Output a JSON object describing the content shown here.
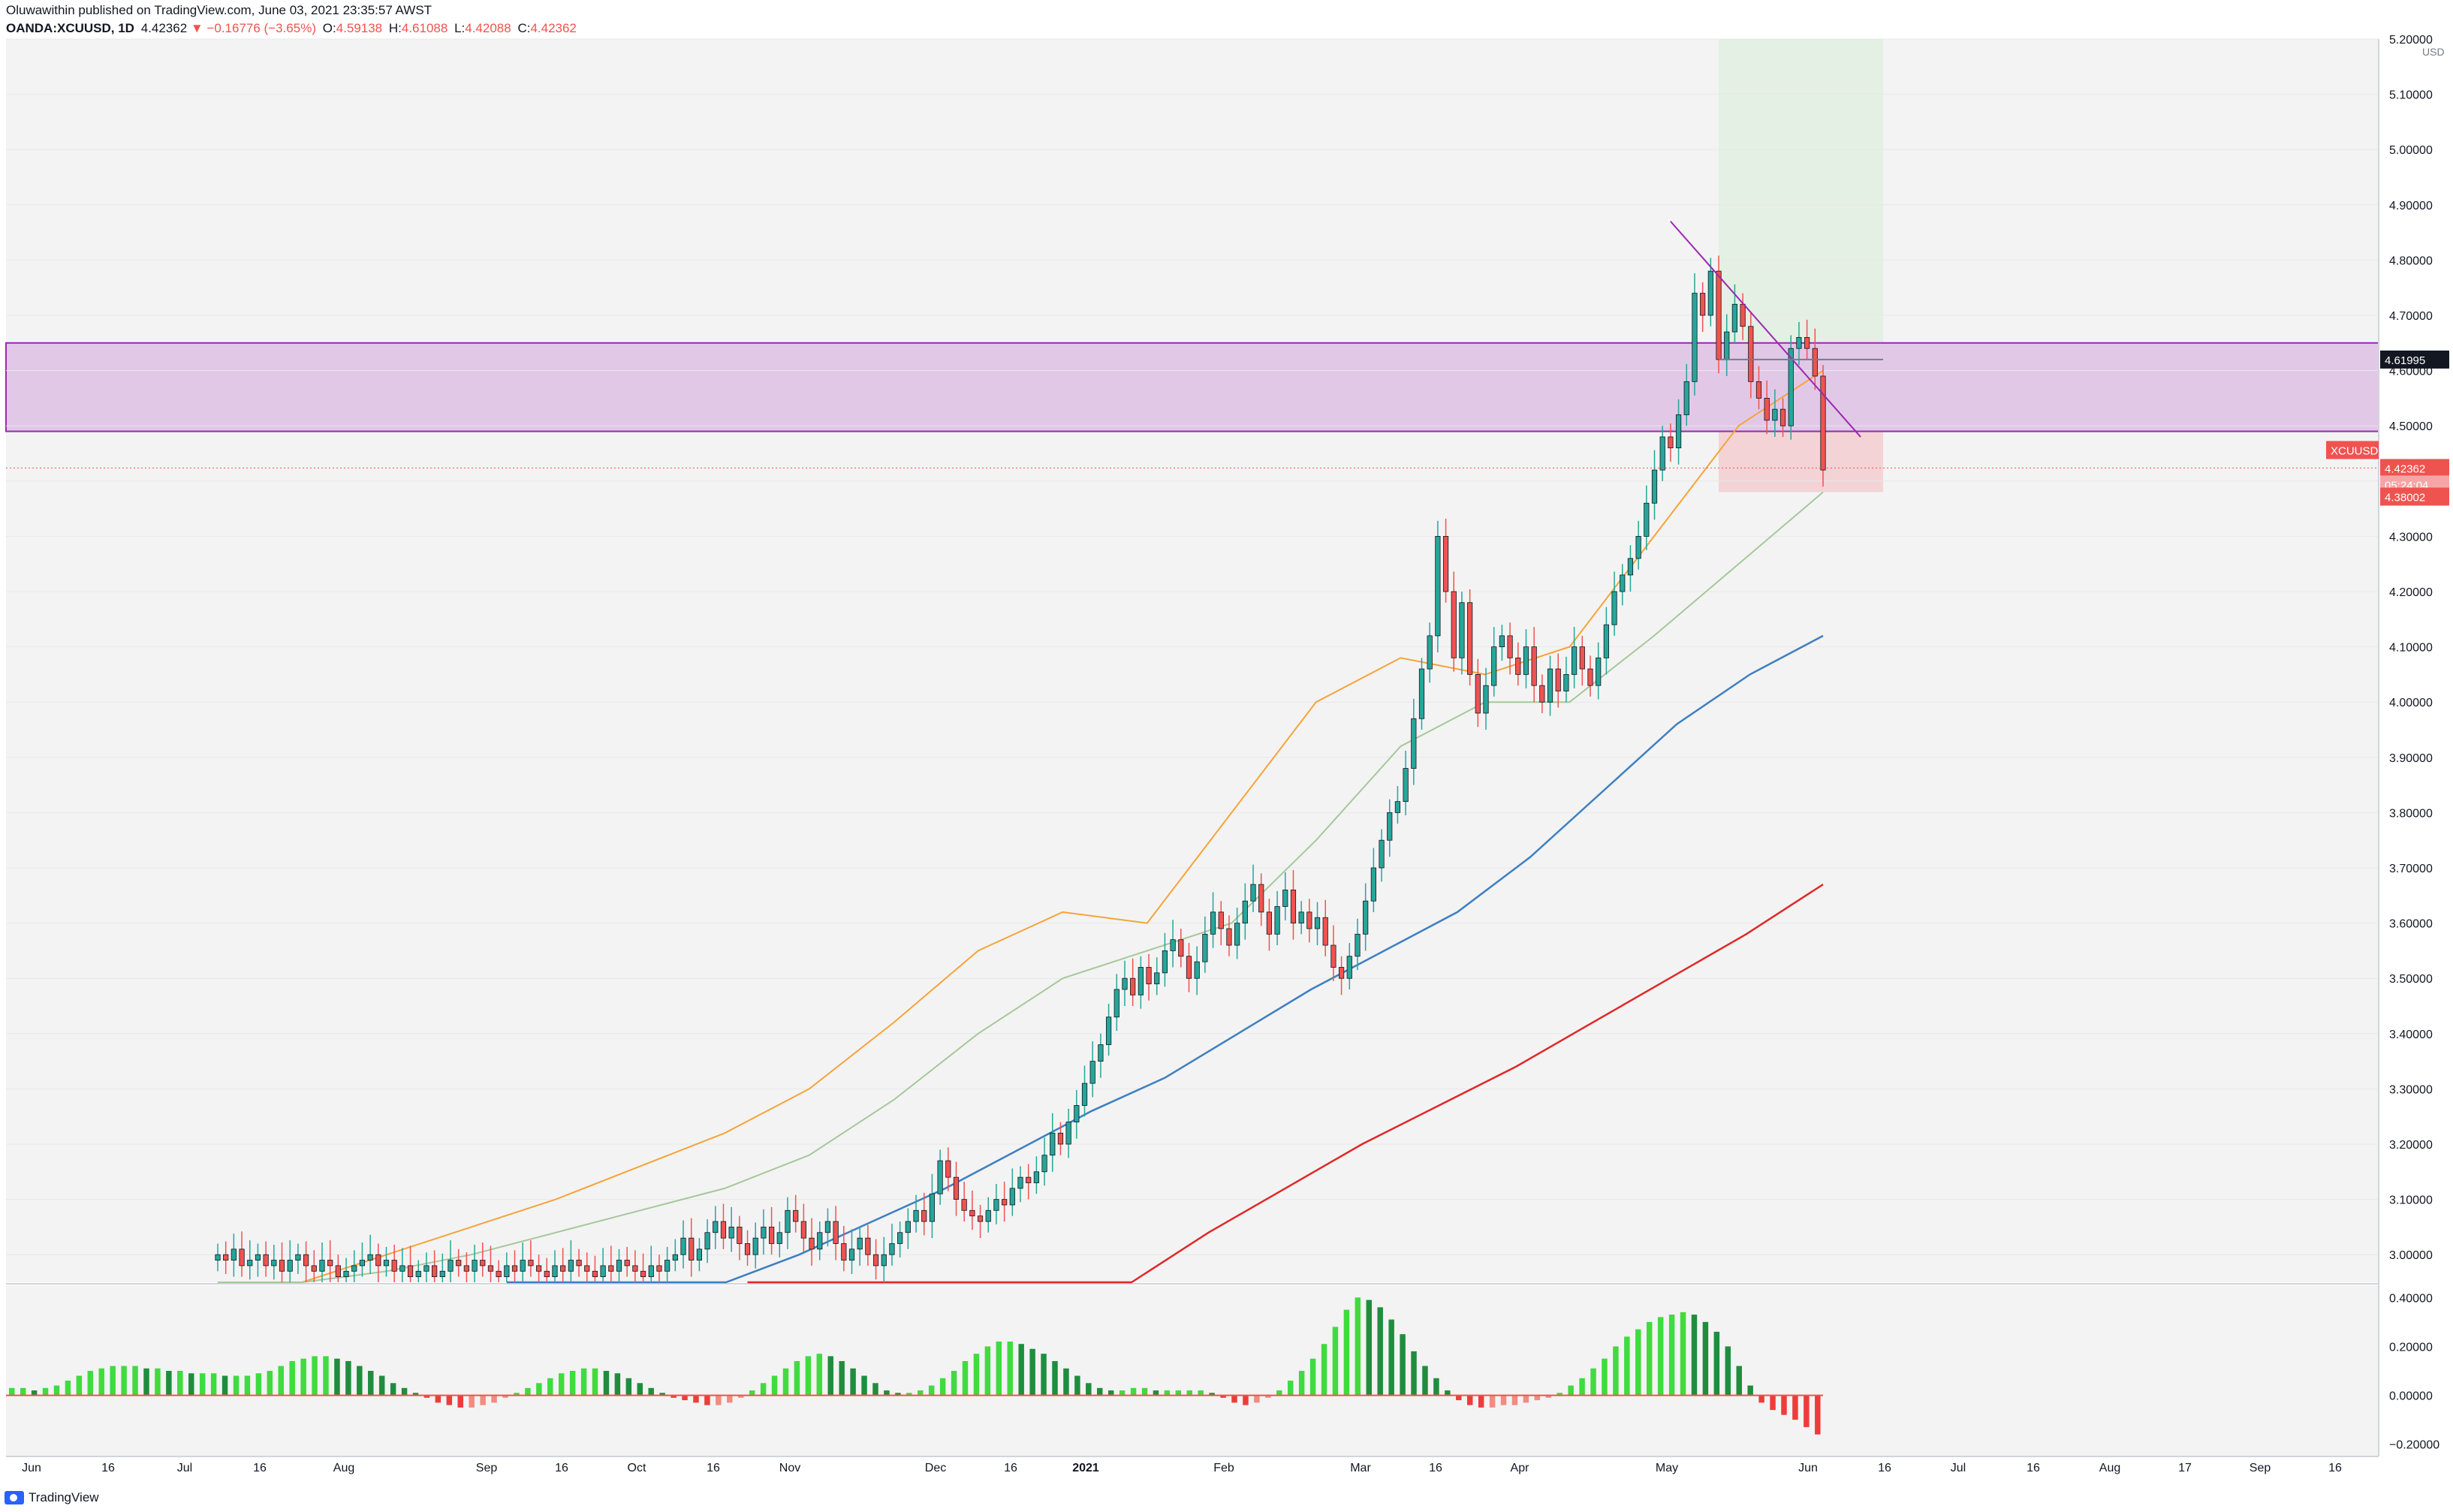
{
  "header": {
    "author": "Oluwawithin",
    "published_text": "published on TradingView.com, June 03, 2021 23:35:57 AWST",
    "symbol": "OANDA:XCUUSD, 1D",
    "last": "4.42362",
    "change": "▼ −0.16776 (−3.65%)",
    "o_label": "O:",
    "o": "4.59138",
    "h_label": "H:",
    "h": "4.61088",
    "l_label": "L:",
    "l": "4.42088",
    "c_label": "C:",
    "c": "4.42362"
  },
  "footer": {
    "brand": "TradingView"
  },
  "colors": {
    "up": "#26a69a",
    "down": "#ef5350",
    "zone": "#e1c8e7",
    "zone_border": "#9c27b0",
    "target": "#e3f0e3",
    "stop": "#f3d3d6",
    "ma20": "#f6a339",
    "ma50": "#a5c89a",
    "ma100": "#3e7fc1",
    "ma200": "#e02828",
    "hist_up": "#3fdb3f",
    "hist_down": "#ef3b3b"
  },
  "chart_data": {
    "type": "candlestick",
    "title": "",
    "currency": "USD",
    "ylim": [
      2.95,
      5.2
    ],
    "y_ticks": [
      "5.20000",
      "5.10000",
      "5.00000",
      "4.90000",
      "4.80000",
      "4.70000",
      "4.60000",
      "4.50000",
      "4.40000",
      "4.30000",
      "4.20000",
      "4.10000",
      "4.00000",
      "3.90000",
      "3.80000",
      "3.70000",
      "3.60000",
      "3.50000",
      "3.40000",
      "3.30000",
      "3.20000",
      "3.10000",
      "3.00000"
    ],
    "x_ticks": [
      "Jun",
      "16",
      "Jul",
      "16",
      "Aug",
      "Sep",
      "16",
      "Oct",
      "16",
      "Nov",
      "Dec",
      "16",
      "2021",
      "Feb",
      "Mar",
      "16",
      "Apr",
      "May",
      "Jun",
      "16",
      "Jul",
      "16",
      "Aug",
      "17",
      "Sep",
      "16"
    ],
    "price_labels": {
      "symbol": "XCUUSD",
      "last": "4.42362",
      "countdown": "05:24:04",
      "level": "4.61995",
      "stop": "4.38002"
    },
    "zones": {
      "resistance": [
        4.49,
        4.65
      ],
      "target": [
        4.62,
        5.2
      ],
      "stop": [
        4.38,
        4.62
      ]
    },
    "lines": {
      "trend_start": [
        4.87
      ],
      "trend_end": [
        4.48
      ]
    },
    "ohlc_close": [
      3.0,
      2.99,
      3.01,
      2.98,
      2.99,
      3.0,
      2.98,
      2.99,
      2.97,
      2.99,
      3.0,
      2.98,
      2.97,
      2.99,
      2.98,
      2.96,
      2.97,
      2.98,
      2.99,
      3.0,
      2.98,
      2.99,
      2.97,
      2.98,
      2.96,
      2.97,
      2.98,
      2.96,
      2.97,
      2.99,
      2.98,
      2.97,
      2.99,
      2.98,
      2.97,
      2.96,
      2.98,
      2.97,
      2.99,
      2.98,
      2.97,
      2.96,
      2.98,
      2.97,
      2.99,
      2.98,
      2.97,
      2.96,
      2.98,
      2.97,
      2.99,
      2.98,
      2.97,
      2.96,
      2.98,
      2.97,
      2.99,
      3.0,
      3.03,
      2.99,
      3.01,
      3.04,
      3.06,
      3.03,
      3.05,
      3.02,
      3.0,
      3.03,
      3.05,
      3.02,
      3.04,
      3.08,
      3.06,
      3.03,
      3.01,
      3.04,
      3.06,
      3.02,
      2.99,
      3.01,
      3.03,
      3.0,
      2.98,
      3.0,
      3.02,
      3.04,
      3.06,
      3.08,
      3.06,
      3.11,
      3.17,
      3.14,
      3.1,
      3.08,
      3.07,
      3.06,
      3.08,
      3.1,
      3.09,
      3.12,
      3.14,
      3.13,
      3.15,
      3.18,
      3.22,
      3.2,
      3.24,
      3.27,
      3.31,
      3.35,
      3.38,
      3.43,
      3.48,
      3.5,
      3.47,
      3.52,
      3.49,
      3.51,
      3.55,
      3.57,
      3.54,
      3.5,
      3.53,
      3.58,
      3.62,
      3.59,
      3.56,
      3.6,
      3.64,
      3.67,
      3.62,
      3.58,
      3.63,
      3.66,
      3.6,
      3.62,
      3.59,
      3.61,
      3.56,
      3.52,
      3.5,
      3.54,
      3.58,
      3.64,
      3.7,
      3.75,
      3.8,
      3.82,
      3.88,
      3.97,
      4.06,
      4.12,
      4.3,
      4.2,
      4.08,
      4.18,
      4.05,
      3.98,
      4.03,
      4.1,
      4.12,
      4.08,
      4.05,
      4.1,
      4.03,
      4.0,
      4.06,
      4.02,
      4.05,
      4.1,
      4.06,
      4.03,
      4.08,
      4.14,
      4.2,
      4.23,
      4.26,
      4.3,
      4.36,
      4.42,
      4.48,
      4.46,
      4.52,
      4.58,
      4.74,
      4.7,
      4.78,
      4.62,
      4.67,
      4.72,
      4.68,
      4.58,
      4.55,
      4.51,
      4.53,
      4.5,
      4.64,
      4.66,
      4.64,
      4.59,
      4.42
    ],
    "ma": [
      {
        "name": "",
        "values": [
          2.9,
          2.95,
          3.0,
          3.05,
          3.1,
          3.16,
          3.22,
          3.3,
          3.42,
          3.55,
          3.62,
          3.6,
          3.8,
          4.0,
          4.08,
          4.05,
          4.1,
          4.3,
          4.5,
          4.6
        ]
      },
      {
        "name": "",
        "values": [
          2.85,
          2.92,
          2.97,
          3.0,
          3.04,
          3.08,
          3.12,
          3.18,
          3.28,
          3.4,
          3.5,
          3.55,
          3.6,
          3.75,
          3.92,
          4.0,
          4.0,
          4.12,
          4.25,
          4.38
        ]
      },
      {
        "name": "",
        "values": [
          2.6,
          2.72,
          2.82,
          2.92,
          3.0,
          3.06,
          3.12,
          3.19,
          3.26,
          3.32,
          3.4,
          3.48,
          3.55,
          3.62,
          3.72,
          3.84,
          3.96,
          4.05,
          4.12
        ]
      },
      {
        "name": "",
        "values": [
          2.4,
          2.5,
          2.62,
          2.72,
          2.82,
          2.94,
          3.04,
          3.12,
          3.2,
          3.27,
          3.34,
          3.42,
          3.5,
          3.58,
          3.67
        ]
      }
    ],
    "oscillator": {
      "ylim": [
        -0.25,
        0.45
      ],
      "y_ticks": [
        "0.40000",
        "0.20000",
        "0.00000",
        "−0.20000"
      ],
      "values": [
        0.03,
        0.03,
        0.02,
        0.03,
        0.04,
        0.06,
        0.08,
        0.1,
        0.11,
        0.12,
        0.12,
        0.12,
        0.11,
        0.11,
        0.1,
        0.1,
        0.09,
        0.09,
        0.09,
        0.08,
        0.08,
        0.08,
        0.09,
        0.1,
        0.12,
        0.14,
        0.15,
        0.16,
        0.16,
        0.15,
        0.14,
        0.12,
        0.1,
        0.08,
        0.05,
        0.03,
        0.01,
        -0.01,
        -0.03,
        -0.04,
        -0.05,
        -0.05,
        -0.04,
        -0.03,
        -0.01,
        0.01,
        0.03,
        0.05,
        0.07,
        0.09,
        0.1,
        0.11,
        0.11,
        0.1,
        0.09,
        0.07,
        0.05,
        0.03,
        0.01,
        -0.01,
        -0.02,
        -0.03,
        -0.04,
        -0.04,
        -0.03,
        -0.01,
        0.02,
        0.05,
        0.08,
        0.11,
        0.14,
        0.16,
        0.17,
        0.16,
        0.14,
        0.11,
        0.08,
        0.05,
        0.02,
        0.01,
        0.01,
        0.02,
        0.04,
        0.07,
        0.1,
        0.14,
        0.17,
        0.2,
        0.22,
        0.22,
        0.21,
        0.19,
        0.17,
        0.14,
        0.11,
        0.08,
        0.05,
        0.03,
        0.02,
        0.02,
        0.03,
        0.03,
        0.02,
        0.02,
        0.02,
        0.02,
        0.02,
        0.01,
        -0.01,
        -0.03,
        -0.04,
        -0.03,
        -0.01,
        0.02,
        0.06,
        0.1,
        0.15,
        0.21,
        0.28,
        0.35,
        0.4,
        0.39,
        0.36,
        0.31,
        0.25,
        0.18,
        0.12,
        0.07,
        0.02,
        -0.02,
        -0.04,
        -0.05,
        -0.05,
        -0.04,
        -0.04,
        -0.03,
        -0.02,
        -0.01,
        0.01,
        0.04,
        0.07,
        0.11,
        0.15,
        0.2,
        0.24,
        0.27,
        0.3,
        0.32,
        0.33,
        0.34,
        0.33,
        0.3,
        0.26,
        0.2,
        0.12,
        0.04,
        -0.03,
        -0.06,
        -0.08,
        -0.1,
        -0.13,
        -0.16
      ]
    }
  }
}
